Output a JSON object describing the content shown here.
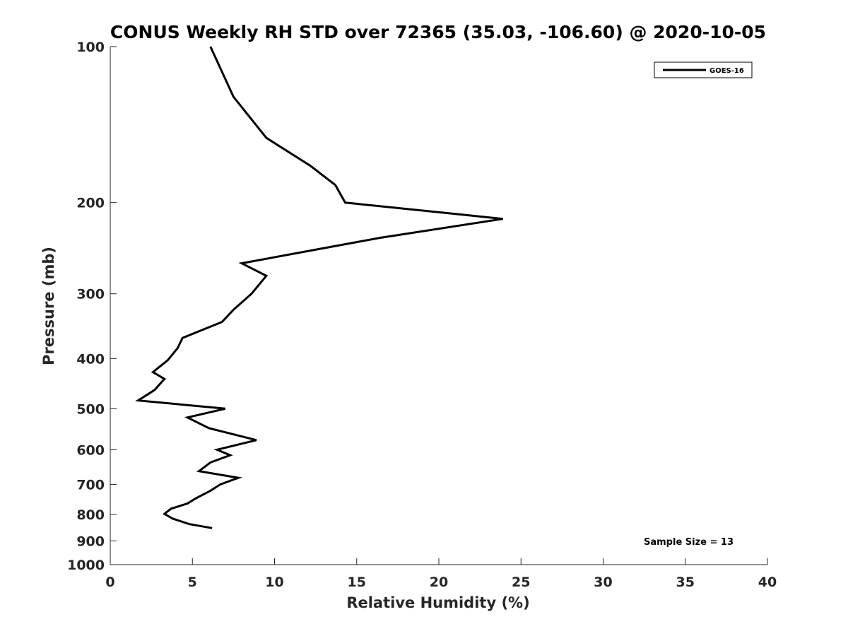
{
  "chart_data": {
    "type": "line",
    "title": "CONUS Weekly RH STD over 72365 (35.03, -106.60) @ 2020-10-05",
    "xlabel": "Relative Humidity (%)",
    "ylabel": "Pressure (mb)",
    "xlim": [
      0,
      40
    ],
    "ylim": [
      100,
      1000
    ],
    "y_scale": "log",
    "y_reversed": true,
    "xticks": [
      "0",
      "5",
      "10",
      "15",
      "20",
      "25",
      "30",
      "35",
      "40"
    ],
    "yticks": [
      "100",
      "200",
      "300",
      "400",
      "500",
      "600",
      "700",
      "800",
      "900",
      "1000"
    ],
    "grid": false,
    "legend_position": "top-right",
    "series": [
      {
        "name": "GOES-16",
        "color": "#000000",
        "points": [
          {
            "x": 6.1,
            "y": 100
          },
          {
            "x": 7.5,
            "y": 125
          },
          {
            "x": 9.5,
            "y": 150
          },
          {
            "x": 12.2,
            "y": 170
          },
          {
            "x": 13.7,
            "y": 185
          },
          {
            "x": 14.3,
            "y": 200
          },
          {
            "x": 23.9,
            "y": 215
          },
          {
            "x": 16.4,
            "y": 234
          },
          {
            "x": 8.0,
            "y": 262
          },
          {
            "x": 9.5,
            "y": 277
          },
          {
            "x": 8.6,
            "y": 300
          },
          {
            "x": 7.5,
            "y": 322
          },
          {
            "x": 6.8,
            "y": 340
          },
          {
            "x": 4.4,
            "y": 365
          },
          {
            "x": 4.1,
            "y": 382
          },
          {
            "x": 3.5,
            "y": 403
          },
          {
            "x": 2.6,
            "y": 425
          },
          {
            "x": 3.3,
            "y": 438
          },
          {
            "x": 2.7,
            "y": 460
          },
          {
            "x": 1.7,
            "y": 482
          },
          {
            "x": 7.0,
            "y": 500
          },
          {
            "x": 4.7,
            "y": 520
          },
          {
            "x": 6.0,
            "y": 545
          },
          {
            "x": 8.9,
            "y": 575
          },
          {
            "x": 6.5,
            "y": 600
          },
          {
            "x": 7.3,
            "y": 615
          },
          {
            "x": 6.1,
            "y": 635
          },
          {
            "x": 5.4,
            "y": 660
          },
          {
            "x": 7.8,
            "y": 680
          },
          {
            "x": 6.7,
            "y": 700
          },
          {
            "x": 6.1,
            "y": 720
          },
          {
            "x": 5.2,
            "y": 745
          },
          {
            "x": 4.7,
            "y": 762
          },
          {
            "x": 3.7,
            "y": 780
          },
          {
            "x": 3.3,
            "y": 798
          },
          {
            "x": 3.8,
            "y": 815
          },
          {
            "x": 4.8,
            "y": 835
          },
          {
            "x": 6.2,
            "y": 850
          }
        ]
      }
    ],
    "annotations": [
      {
        "text": "Sample Size = 13"
      }
    ]
  }
}
